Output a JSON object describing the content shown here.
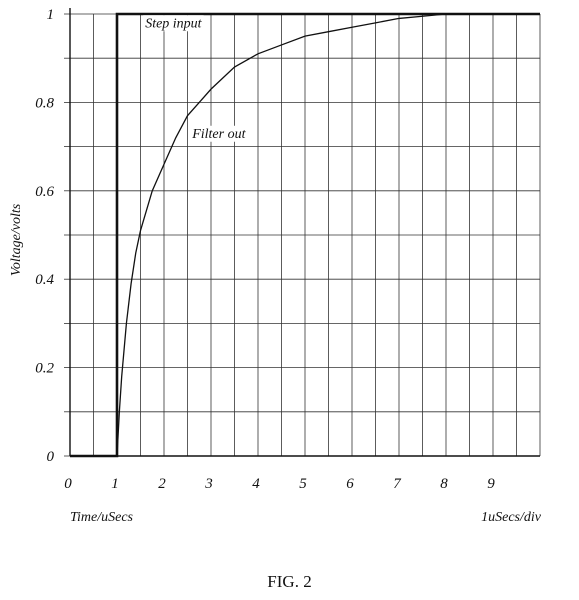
{
  "chart_data": {
    "type": "line",
    "title": "",
    "xlabel": "Time/uSecs",
    "ylabel": "Voltage/volts",
    "x_scale_note": "1uSecs/div",
    "xlim": [
      0,
      10
    ],
    "ylim": [
      0,
      1
    ],
    "x_ticks": [
      0,
      1,
      2,
      3,
      4,
      5,
      6,
      7,
      8,
      9
    ],
    "y_ticks": [
      {
        "value": 0,
        "label": "0"
      },
      {
        "value": 0.2,
        "label": "0.2"
      },
      {
        "value": 0.4,
        "label": "0.4"
      },
      {
        "value": 0.6,
        "label": "0.6"
      },
      {
        "value": 0.8,
        "label": "0.8"
      },
      {
        "value": 1,
        "label": "1"
      }
    ],
    "grid": true,
    "series": [
      {
        "name": "Step input",
        "style": "thick",
        "points": [
          [
            0,
            0
          ],
          [
            1,
            0
          ],
          [
            1,
            1
          ],
          [
            10,
            1
          ]
        ]
      },
      {
        "name": "Filter out",
        "style": "thin",
        "points": [
          [
            1,
            0
          ],
          [
            1.05,
            0.1
          ],
          [
            1.1,
            0.18
          ],
          [
            1.2,
            0.3
          ],
          [
            1.3,
            0.39
          ],
          [
            1.4,
            0.46
          ],
          [
            1.5,
            0.51
          ],
          [
            1.75,
            0.6
          ],
          [
            2,
            0.66
          ],
          [
            2.25,
            0.72
          ],
          [
            2.5,
            0.77
          ],
          [
            2.75,
            0.8
          ],
          [
            3,
            0.83
          ],
          [
            3.5,
            0.88
          ],
          [
            4,
            0.91
          ],
          [
            4.5,
            0.93
          ],
          [
            5,
            0.95
          ],
          [
            5.5,
            0.96
          ],
          [
            6,
            0.97
          ],
          [
            6.5,
            0.98
          ],
          [
            7,
            0.99
          ],
          [
            7.5,
            0.995
          ],
          [
            8,
            1
          ],
          [
            10,
            1
          ]
        ]
      }
    ],
    "annotations": [
      {
        "text": "Step input",
        "x": 1.6,
        "y": 0.97
      },
      {
        "text": "Filter out",
        "x": 2.6,
        "y": 0.72
      }
    ]
  },
  "caption": "FIG. 2"
}
